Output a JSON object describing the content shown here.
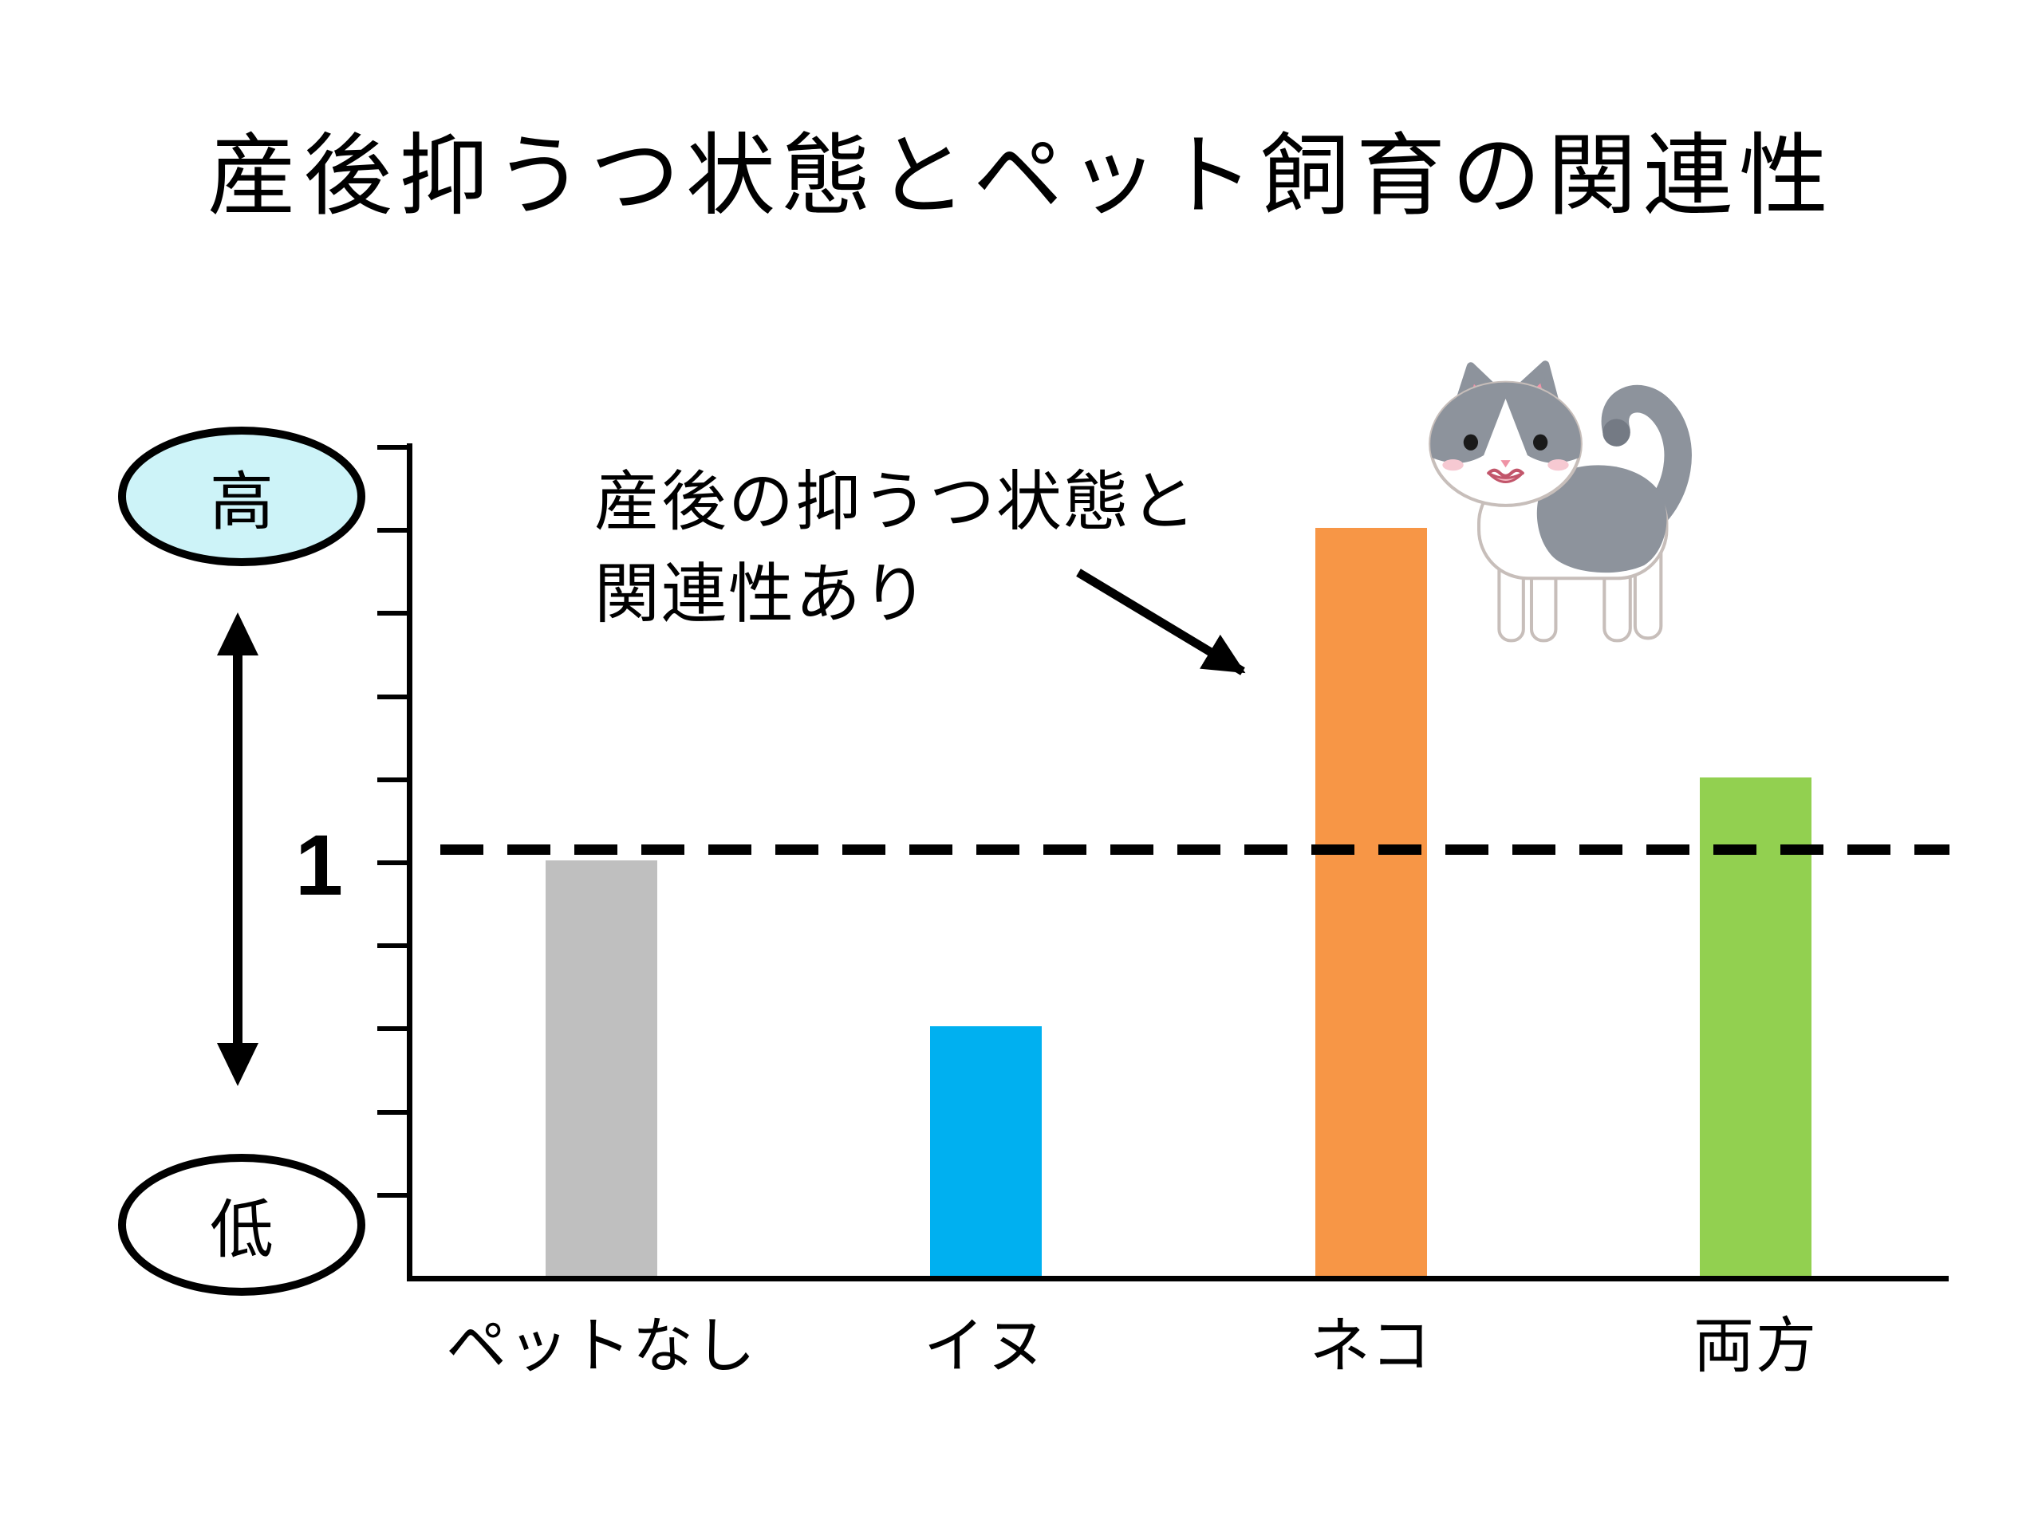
{
  "title": "産後抑うつ状態とペット飼育の関連性",
  "axis": {
    "high_label": "高",
    "low_label": "低",
    "reference_label": "1"
  },
  "annotation": {
    "line1": "産後の抑うつ状態と",
    "line2": "関連性あり"
  },
  "chart_data": {
    "type": "bar",
    "title": "産後抑うつ状態とペット飼育の関連性",
    "categories": [
      "ペットなし",
      "イヌ",
      "ネコ",
      "両方"
    ],
    "values": [
      1.0,
      0.6,
      1.8,
      1.2
    ],
    "bar_colors": [
      "#BFBFBF",
      "#00B0F0",
      "#F79646",
      "#92D050"
    ],
    "ylim": [
      0,
      2.0
    ],
    "tick_interval": 0.2,
    "ylabel_high": "高",
    "ylabel_low": "低",
    "xlabel": "",
    "grid": false,
    "legend": false,
    "reference_line": {
      "value": 1.0,
      "label": "1",
      "style": "dashed",
      "color": "#000000"
    },
    "annotation": {
      "text": "産後の抑うつ状態と関連性あり",
      "points_to": "ネコ"
    },
    "decoration": "cat-illustration"
  },
  "colors": {
    "axis": "#000000",
    "dashed_line": "#000000",
    "high_oval_fill": "#CDF3F8",
    "low_oval_fill": "#FFFFFF"
  }
}
